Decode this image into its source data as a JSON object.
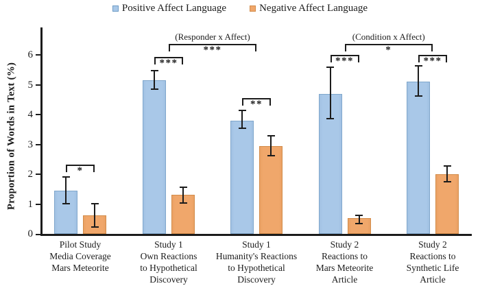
{
  "figure": {
    "background": "#ffffff",
    "text_color": "#1b1b1b"
  },
  "legend": {
    "items": [
      {
        "name": "positive",
        "label": "Positive Affect Language",
        "color": "#A9C8E8",
        "border": "#6E9CC6"
      },
      {
        "name": "negative",
        "label": "Negative Affect Language",
        "color": "#F0A76B",
        "border": "#D28B49"
      }
    ]
  },
  "chart_data": {
    "type": "bar",
    "title": "",
    "xlabel": "",
    "ylabel": "Proportion of Words in Text (%)",
    "ylim": [
      0,
      6.9
    ],
    "yticks": [
      0,
      1,
      2,
      3,
      4,
      5,
      6
    ],
    "grid": false,
    "legend_position": "top-center",
    "categories": [
      [
        "Pilot Study",
        "Media Coverage",
        "Mars Meteorite"
      ],
      [
        "Study 1",
        "Own Reactions",
        "to Hypothetical",
        "Discovery"
      ],
      [
        "Study 1",
        "Humanity's Reactions",
        "to Hypothetical",
        "Discovery"
      ],
      [
        "Study 2",
        "Reactions to",
        "Mars Meteorite",
        "Article"
      ],
      [
        "Study 2",
        "Reactions to",
        "Synthetic Life",
        "Article"
      ]
    ],
    "series": [
      {
        "name": "Positive Affect Language",
        "color": "#A9C8E8",
        "border": "#7FA6CB",
        "values": [
          1.45,
          5.15,
          3.8,
          4.7,
          5.1
        ],
        "error_low": [
          1.0,
          4.82,
          3.52,
          3.84,
          4.6
        ],
        "error_high": [
          1.93,
          5.5,
          4.15,
          5.6,
          5.65
        ]
      },
      {
        "name": "Negative Affect Language",
        "color": "#F0A76B",
        "border": "#D28B49",
        "values": [
          0.62,
          1.32,
          2.95,
          0.52,
          2.0
        ],
        "error_low": [
          0.2,
          1.02,
          2.6,
          0.32,
          1.72
        ],
        "error_high": [
          1.03,
          1.58,
          3.32,
          0.64,
          2.3
        ]
      }
    ],
    "significance": {
      "within_group": [
        {
          "group": 0,
          "label": "*",
          "y": 2.32
        },
        {
          "group": 1,
          "label": "***",
          "y": 5.93
        },
        {
          "group": 2,
          "label": "**",
          "y": 4.55
        },
        {
          "group": 3,
          "label": "***",
          "y": 6.0
        },
        {
          "group": 4,
          "label": "***",
          "y": 6.0
        }
      ],
      "between_groups": [
        {
          "from": 1,
          "to": 2,
          "title": "(Responder x Affect)",
          "label": "***",
          "y": 6.37
        },
        {
          "from": 3,
          "to": 4,
          "title": "(Condition x Affect)",
          "label": "*",
          "y": 6.37
        }
      ]
    }
  }
}
